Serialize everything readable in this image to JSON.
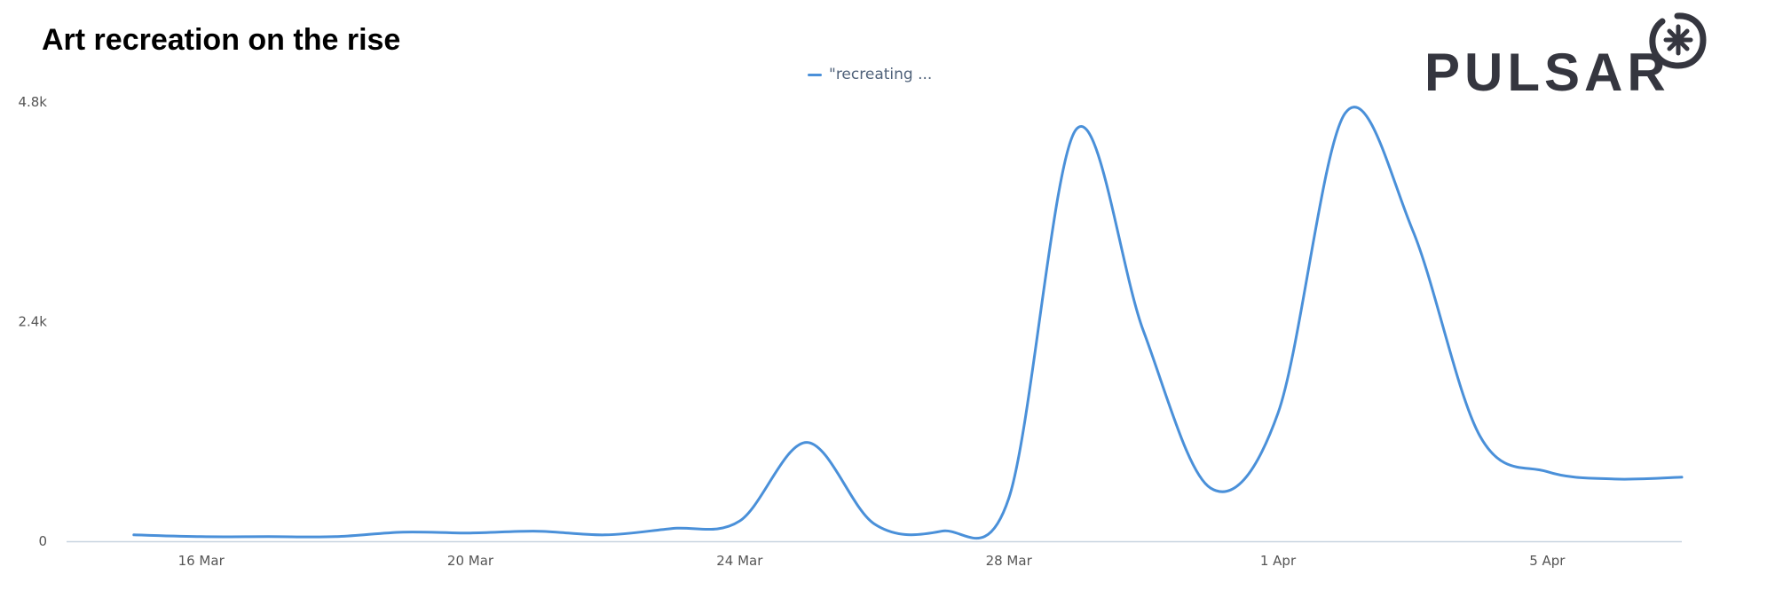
{
  "colors": {
    "series": "#4a90d9",
    "axis": "#c8d4e0",
    "logo": "#35363f"
  },
  "brand": {
    "logo_text": "PULSAR",
    "logo_icon": "asterisk-circle-icon"
  },
  "chart_data": {
    "type": "line",
    "title": "Art recreation on the rise",
    "xlabel": "",
    "ylabel": "",
    "legend_position": "top-center",
    "grid": false,
    "ylim": [
      0,
      4800
    ],
    "y_ticks": [
      {
        "value": 0,
        "label": "0"
      },
      {
        "value": 2400,
        "label": "2.4k"
      },
      {
        "value": 4800,
        "label": "4.8k"
      }
    ],
    "x_ticks": [
      {
        "date": "2020-03-16",
        "label": "16 Mar"
      },
      {
        "date": "2020-03-20",
        "label": "20 Mar"
      },
      {
        "date": "2020-03-24",
        "label": "24 Mar"
      },
      {
        "date": "2020-03-28",
        "label": "28 Mar"
      },
      {
        "date": "2020-04-01",
        "label": "1 Apr"
      },
      {
        "date": "2020-04-05",
        "label": "5 Apr"
      }
    ],
    "x_range": [
      "2020-03-14",
      "2020-04-07"
    ],
    "series": [
      {
        "name": "\"recreating ...",
        "points": [
          {
            "x": "2020-03-15",
            "y": 70
          },
          {
            "x": "2020-03-16",
            "y": 50
          },
          {
            "x": "2020-03-17",
            "y": 50
          },
          {
            "x": "2020-03-18",
            "y": 50
          },
          {
            "x": "2020-03-19",
            "y": 100
          },
          {
            "x": "2020-03-20",
            "y": 90
          },
          {
            "x": "2020-03-21",
            "y": 110
          },
          {
            "x": "2020-03-22",
            "y": 70
          },
          {
            "x": "2020-03-23",
            "y": 140
          },
          {
            "x": "2020-03-24",
            "y": 220
          },
          {
            "x": "2020-03-25",
            "y": 1080
          },
          {
            "x": "2020-03-26",
            "y": 190
          },
          {
            "x": "2020-03-27",
            "y": 110
          },
          {
            "x": "2020-03-28",
            "y": 470
          },
          {
            "x": "2020-03-29",
            "y": 4500
          },
          {
            "x": "2020-03-30",
            "y": 2300
          },
          {
            "x": "2020-03-31",
            "y": 580
          },
          {
            "x": "2020-04-01",
            "y": 1400
          },
          {
            "x": "2020-04-02",
            "y": 4680
          },
          {
            "x": "2020-04-03",
            "y": 3400
          },
          {
            "x": "2020-04-04",
            "y": 1150
          },
          {
            "x": "2020-04-05",
            "y": 760
          },
          {
            "x": "2020-04-06",
            "y": 680
          },
          {
            "x": "2020-04-07",
            "y": 700
          }
        ]
      }
    ]
  }
}
